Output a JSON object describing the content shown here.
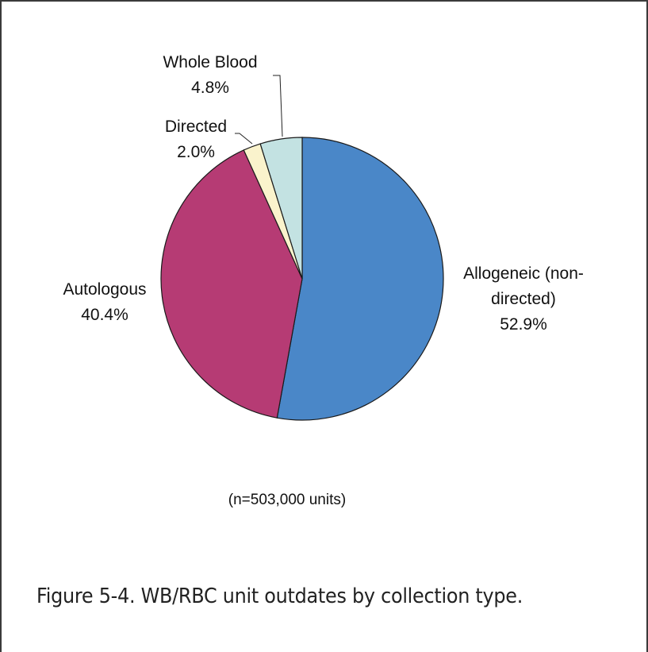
{
  "chart_data": {
    "type": "pie",
    "slices": [
      {
        "label_lines": [
          "Allogeneic (non-",
          "directed)"
        ],
        "value_label": "52.9%",
        "value": 52.9,
        "color": "#4a87c8"
      },
      {
        "label_lines": [
          "Autologous"
        ],
        "value_label": "40.4%",
        "value": 40.4,
        "color": "#b63b74"
      },
      {
        "label_lines": [
          "Directed"
        ],
        "value_label": "2.0%",
        "value": 2.0,
        "color": "#faf3cc"
      },
      {
        "label_lines": [
          "Whole Blood"
        ],
        "value_label": "4.8%",
        "value": 4.8,
        "color": "#c3e2e2"
      }
    ],
    "note": "(n=503,000 units)"
  },
  "caption": "Figure 5-4. WB/RBC unit outdates by collection type."
}
